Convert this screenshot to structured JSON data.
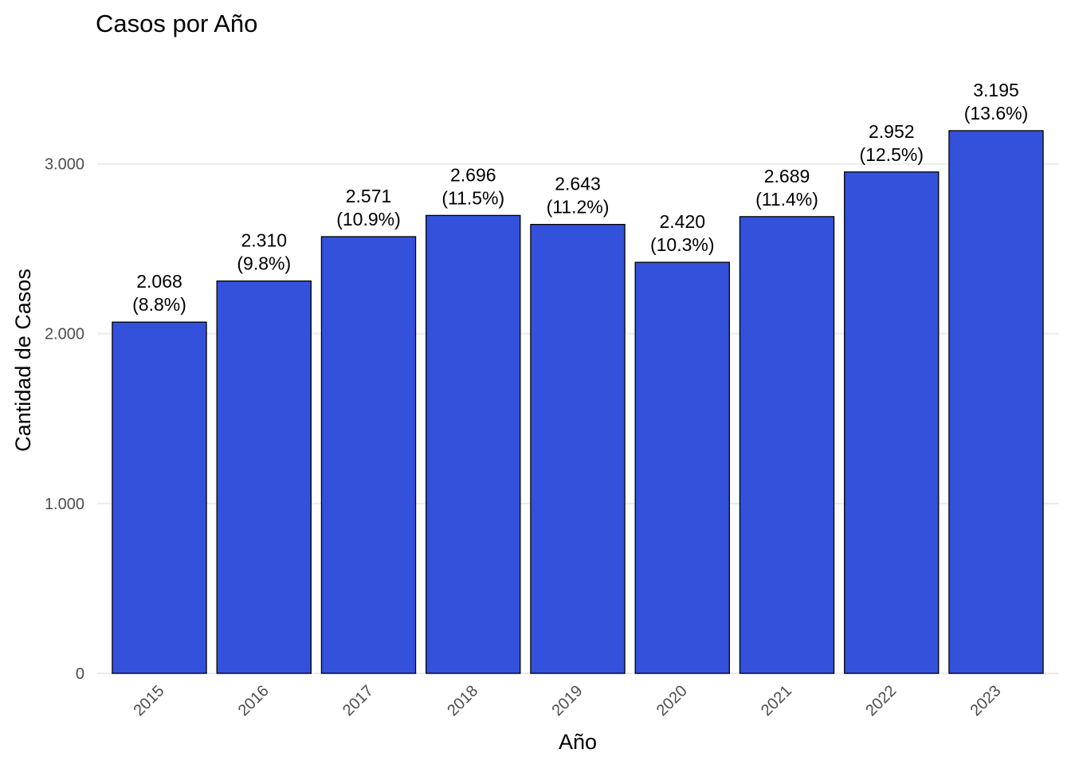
{
  "chart_data": {
    "type": "bar",
    "title": "Casos por Año",
    "xlabel": "Año",
    "ylabel": "Cantidad de Casos",
    "categories": [
      "2015",
      "2016",
      "2017",
      "2018",
      "2019",
      "2020",
      "2021",
      "2022",
      "2023"
    ],
    "values": [
      2068,
      2310,
      2571,
      2696,
      2643,
      2420,
      2689,
      2952,
      3195
    ],
    "value_labels": [
      "2.068",
      "2.310",
      "2.571",
      "2.696",
      "2.643",
      "2.420",
      "2.689",
      "2.952",
      "3.195"
    ],
    "percent_labels": [
      "(8.8%)",
      "(9.8%)",
      "(10.9%)",
      "(11.5%)",
      "(11.2%)",
      "(10.3%)",
      "(11.4%)",
      "(12.5%)",
      "(13.6%)"
    ],
    "yticks": [
      0,
      1000,
      2000,
      3000
    ],
    "ytick_labels": [
      "0",
      "1.000",
      "2.000",
      "3.000"
    ],
    "ylim": [
      0,
      3195
    ],
    "grid": true,
    "legend": "none",
    "bar_color": "#3351DB",
    "bar_outline_color": "#000000"
  }
}
